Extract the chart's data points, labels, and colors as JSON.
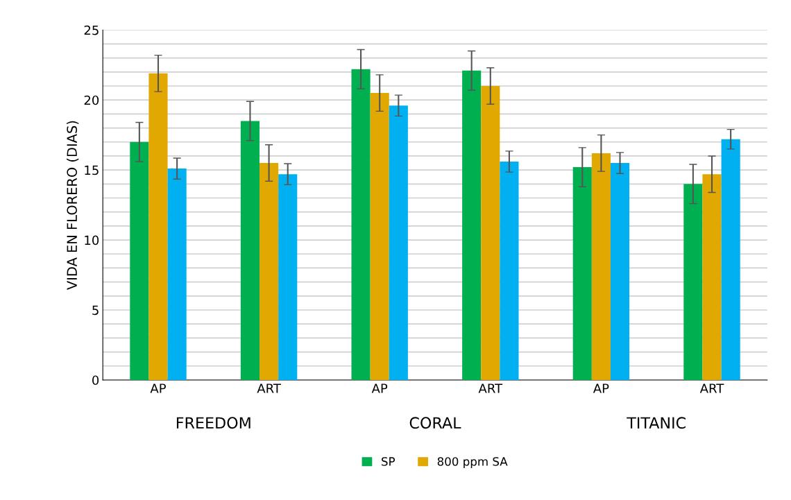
{
  "chart_data": {
    "type": "bar",
    "ylabel": "VIDA EN FLORERO (DIAS)",
    "categories": [
      "AP",
      "ART",
      "AP",
      "ART",
      "AP",
      "ART"
    ],
    "annotations": [
      "FREEDOM",
      "CORAL",
      "TITANIC"
    ],
    "series": [
      {
        "name": "SP",
        "color": "#00b050",
        "values": [
          17.0,
          18.5,
          22.2,
          22.1,
          15.2,
          14.0
        ],
        "errors": [
          1.4,
          1.4,
          1.4,
          1.4,
          1.4,
          1.4
        ]
      },
      {
        "name": "800 ppm SA",
        "color": "#e0a800",
        "values": [
          21.9,
          15.5,
          20.5,
          21.0,
          16.2,
          14.7
        ],
        "errors": [
          1.3,
          1.3,
          1.3,
          1.3,
          1.3,
          1.3
        ]
      },
      {
        "color": "#00b0f0",
        "values": [
          15.1,
          14.7,
          19.6,
          15.6,
          15.5,
          17.2
        ],
        "errors": [
          0.75,
          0.75,
          0.75,
          0.75,
          0.75,
          0.7
        ]
      }
    ],
    "ylim": [
      0,
      25
    ],
    "yticks": [
      0,
      {
        "value": 1,
        "label": null
      },
      {
        "value": 2,
        "label": null
      },
      {
        "value": 3,
        "label": null
      },
      {
        "value": 4,
        "label": null
      },
      5,
      {
        "value": 6,
        "label": null
      },
      {
        "value": 7,
        "label": null
      },
      {
        "value": 8,
        "label": null
      },
      {
        "value": 9,
        "label": null
      },
      10,
      {
        "value": 11,
        "label": null
      },
      {
        "value": 12,
        "label": null
      },
      {
        "value": 13,
        "label": null
      },
      {
        "value": 14,
        "label": null
      },
      15,
      {
        "value": 16,
        "label": null
      },
      {
        "value": 17,
        "label": null
      },
      {
        "value": 18,
        "label": null
      },
      {
        "value": 19,
        "label": null
      },
      20,
      {
        "value": 21,
        "label": null
      },
      {
        "value": 22,
        "label": null
      },
      {
        "value": 23,
        "label": null
      },
      {
        "value": 24,
        "label": null
      },
      25
    ],
    "grid": "y",
    "legend": "bottom"
  }
}
